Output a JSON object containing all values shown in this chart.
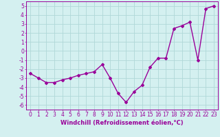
{
  "x": [
    0,
    1,
    2,
    3,
    4,
    5,
    6,
    7,
    8,
    9,
    10,
    11,
    12,
    13,
    14,
    15,
    16,
    17,
    18,
    19,
    20,
    21,
    22,
    23
  ],
  "y": [
    -2.5,
    -3.0,
    -3.5,
    -3.5,
    -3.2,
    -3.0,
    -2.7,
    -2.5,
    -2.3,
    -1.5,
    -3.0,
    -4.7,
    -5.7,
    -4.5,
    -3.8,
    -1.8,
    -0.8,
    -0.8,
    2.5,
    2.8,
    3.2,
    -1.0,
    4.7,
    5.0
  ],
  "line_color": "#990099",
  "marker": "D",
  "marker_size": 2,
  "bg_color": "#d4f0f0",
  "grid_color": "#b0d8d8",
  "xlabel": "Windchill (Refroidissement éolien,°C)",
  "xlabel_fontsize": 6.0,
  "ylim": [
    -6.5,
    5.5
  ],
  "xlim": [
    -0.5,
    23.5
  ],
  "yticks": [
    -6,
    -5,
    -4,
    -3,
    -2,
    -1,
    0,
    1,
    2,
    3,
    4,
    5
  ],
  "xticks": [
    0,
    1,
    2,
    3,
    4,
    5,
    6,
    7,
    8,
    9,
    10,
    11,
    12,
    13,
    14,
    15,
    16,
    17,
    18,
    19,
    20,
    21,
    22,
    23
  ],
  "tick_fontsize": 5.5,
  "line_width": 1.0
}
